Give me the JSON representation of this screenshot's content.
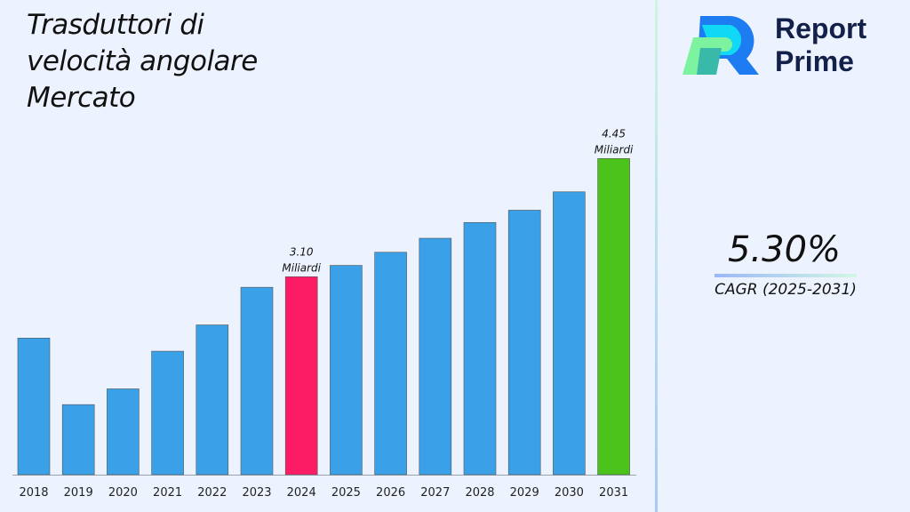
{
  "chart_data": {
    "type": "bar",
    "title": "Trasduttori di velocità angolare Mercato",
    "categories": [
      "2018",
      "2019",
      "2020",
      "2021",
      "2022",
      "2023",
      "2024",
      "2025",
      "2026",
      "2027",
      "2028",
      "2029",
      "2030",
      "2031"
    ],
    "values": [
      2.4,
      1.64,
      1.82,
      2.25,
      2.55,
      2.98,
      3.1,
      3.23,
      3.38,
      3.54,
      3.72,
      3.86,
      4.07,
      4.45
    ],
    "unit": "Miliardi",
    "ylim": [
      0.84,
      4.6
    ],
    "grid": false,
    "colors": {
      "default": "#3aa0e8",
      "highlight_2024": "#fc1c65",
      "highlight_2031": "#4cc31a"
    },
    "annotations": [
      {
        "category": "2024",
        "value_label": "3.10",
        "unit_label": "Miliardi"
      },
      {
        "category": "2031",
        "value_label": "4.45",
        "unit_label": "Miliardi"
      }
    ]
  },
  "brand": {
    "line1": "Report",
    "line2": "Prime"
  },
  "cagr": {
    "value": "5.30%",
    "label": "CAGR (2025-2031)"
  }
}
